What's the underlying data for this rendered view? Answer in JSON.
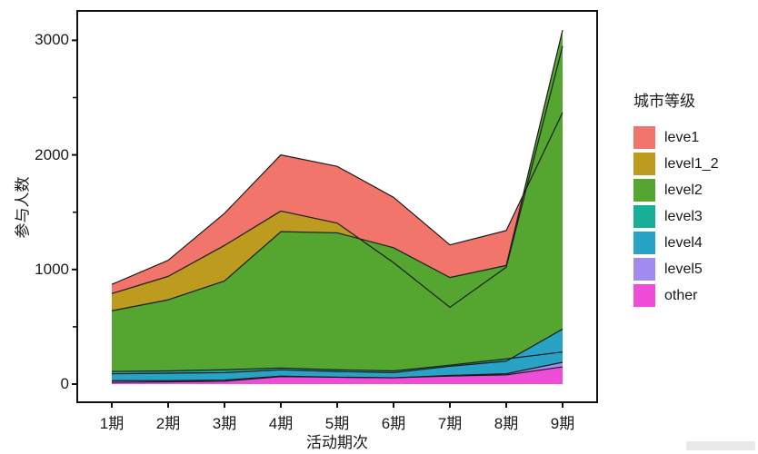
{
  "figure": {
    "y_axis": {
      "label": "参与人数",
      "tick_labels": [
        "0",
        "1000",
        "2000",
        "3000"
      ]
    },
    "x_axis": {
      "label": "活动期次",
      "tick_labels": [
        "1期",
        "2期",
        "3期",
        "4期",
        "5期",
        "6期",
        "7期",
        "8期",
        "9期"
      ]
    },
    "legend": {
      "title": "城市等级",
      "items": [
        {
          "label": "leve1",
          "color": "#F1756B"
        },
        {
          "label": "level1_2",
          "color": "#BC9B1E"
        },
        {
          "label": "level2",
          "color": "#55A630"
        },
        {
          "label": "level3",
          "color": "#19AE98"
        },
        {
          "label": "level4",
          "color": "#28A2C5"
        },
        {
          "label": "level5",
          "color": "#A28BEF"
        },
        {
          "label": "other",
          "color": "#EF4DD8"
        }
      ]
    }
  },
  "chart_data": {
    "type": "area",
    "position": "identity-overlap (each series filled from 0; later series painted on top; thin black value lines drawn over all fills)",
    "title": "",
    "xlabel": "活动期次",
    "ylabel": "参与人数",
    "categories": [
      "1期",
      "2期",
      "3期",
      "4期",
      "5期",
      "6期",
      "7期",
      "8期",
      "9期"
    ],
    "y_ticks": [
      0,
      1000,
      2000,
      3000
    ],
    "y_minor_ticks": [
      500,
      1500,
      2500
    ],
    "ylim": [
      0,
      3250
    ],
    "grid": "off",
    "legend_position": "right",
    "line_color": "#1c1c1c",
    "series": [
      {
        "name": "leve1",
        "color": "#F1756B",
        "values": [
          870,
          1080,
          1490,
          2000,
          1900,
          1630,
          1215,
          1340,
          2370
        ]
      },
      {
        "name": "level1_2",
        "color": "#BC9B1E",
        "values": [
          790,
          940,
          1210,
          1510,
          1405,
          1060,
          670,
          1020,
          2950
        ]
      },
      {
        "name": "level2",
        "color": "#55A630",
        "values": [
          640,
          735,
          900,
          1330,
          1320,
          1190,
          930,
          1035,
          3090
        ]
      },
      {
        "name": "level3",
        "color": "#19AE98",
        "values": [
          110,
          115,
          125,
          140,
          125,
          115,
          165,
          220,
          280
        ]
      },
      {
        "name": "level4",
        "color": "#28A2C5",
        "values": [
          90,
          95,
          100,
          125,
          110,
          100,
          155,
          200,
          480
        ]
      },
      {
        "name": "level5",
        "color": "#A28BEF",
        "values": [
          30,
          30,
          35,
          70,
          60,
          55,
          75,
          90,
          190
        ]
      },
      {
        "name": "other",
        "color": "#EF4DD8",
        "values": [
          15,
          20,
          25,
          65,
          60,
          55,
          70,
          80,
          150
        ]
      }
    ]
  }
}
